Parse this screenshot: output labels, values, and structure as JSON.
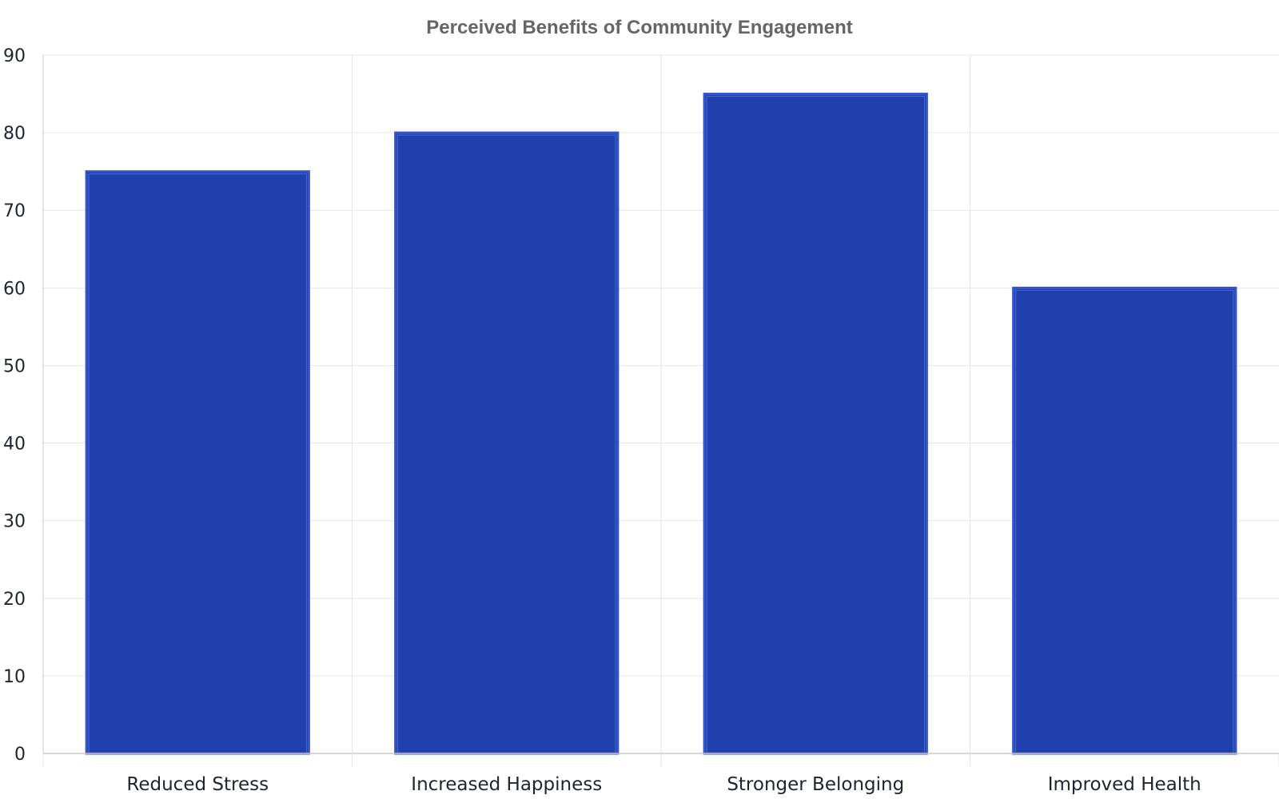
{
  "chart_data": {
    "type": "bar",
    "title": "Perceived Benefits of Community Engagement",
    "xlabel": "",
    "ylabel": "",
    "categories": [
      "Reduced Stress",
      "Increased Happiness",
      "Stronger Belonging",
      "Improved Health"
    ],
    "values": [
      75,
      80,
      85,
      60
    ],
    "ylim": [
      0,
      90
    ],
    "yticks": [
      "0",
      "10",
      "20",
      "30",
      "40",
      "50",
      "60",
      "70",
      "80",
      "90"
    ],
    "grid": true,
    "legend": "none",
    "bar_color": "#1f40ad",
    "bar_edge_color": "#3555c7",
    "grid_color": "#e6e6e6",
    "axis_color": "#c8c8c8"
  }
}
